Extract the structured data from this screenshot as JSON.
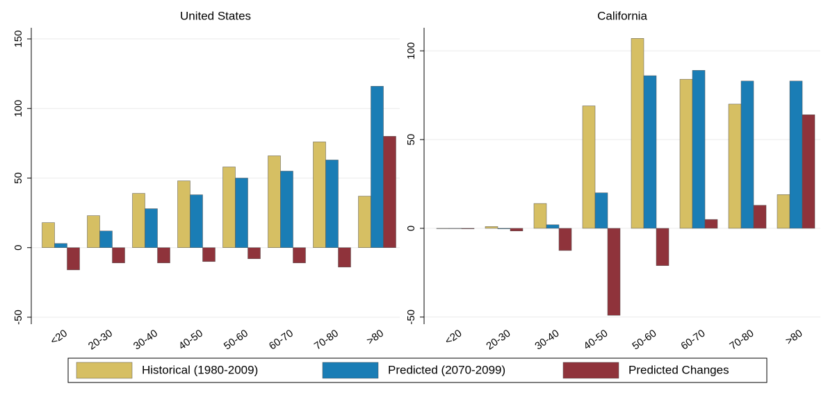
{
  "chart_data": [
    {
      "type": "bar",
      "title": "United States",
      "categories": [
        "<20",
        "20-30",
        "30-40",
        "40-50",
        "50-60",
        "60-70",
        "70-80",
        ">80"
      ],
      "series": [
        {
          "name": "Historical (1980-2009)",
          "color": "#d6bf63",
          "values": [
            18,
            23,
            39,
            48,
            58,
            66,
            76,
            37
          ]
        },
        {
          "name": "Predicted (2070-2099)",
          "color": "#1a7db5",
          "values": [
            3,
            12,
            28,
            38,
            50,
            55,
            63,
            116
          ]
        },
        {
          "name": "Predicted Changes",
          "color": "#8f333b",
          "values": [
            -16,
            -11,
            -11,
            -10,
            -8,
            -11,
            -14,
            80
          ]
        }
      ],
      "ylim": [
        -55,
        158
      ],
      "yticks": [
        -50,
        0,
        50,
        100,
        150
      ],
      "grid": true
    },
    {
      "type": "bar",
      "title": "California",
      "categories": [
        "<20",
        "20-30",
        "30-40",
        "40-50",
        "50-60",
        "60-70",
        "70-80",
        ">80"
      ],
      "series": [
        {
          "color": "#d6bf63",
          "values": [
            0,
            1,
            14,
            69,
            107,
            84,
            70,
            19
          ]
        },
        {
          "color": "#1a7db5",
          "values": [
            0,
            -0.3,
            2,
            20,
            86,
            89,
            83,
            83
          ]
        },
        {
          "color": "#8f333b",
          "values": [
            -0.3,
            -1.5,
            -12.5,
            -49,
            -21,
            5,
            13,
            64
          ]
        }
      ],
      "ylim": [
        -54,
        113
      ],
      "yticks": [
        -50,
        0,
        50,
        100
      ],
      "grid": true
    }
  ]
}
